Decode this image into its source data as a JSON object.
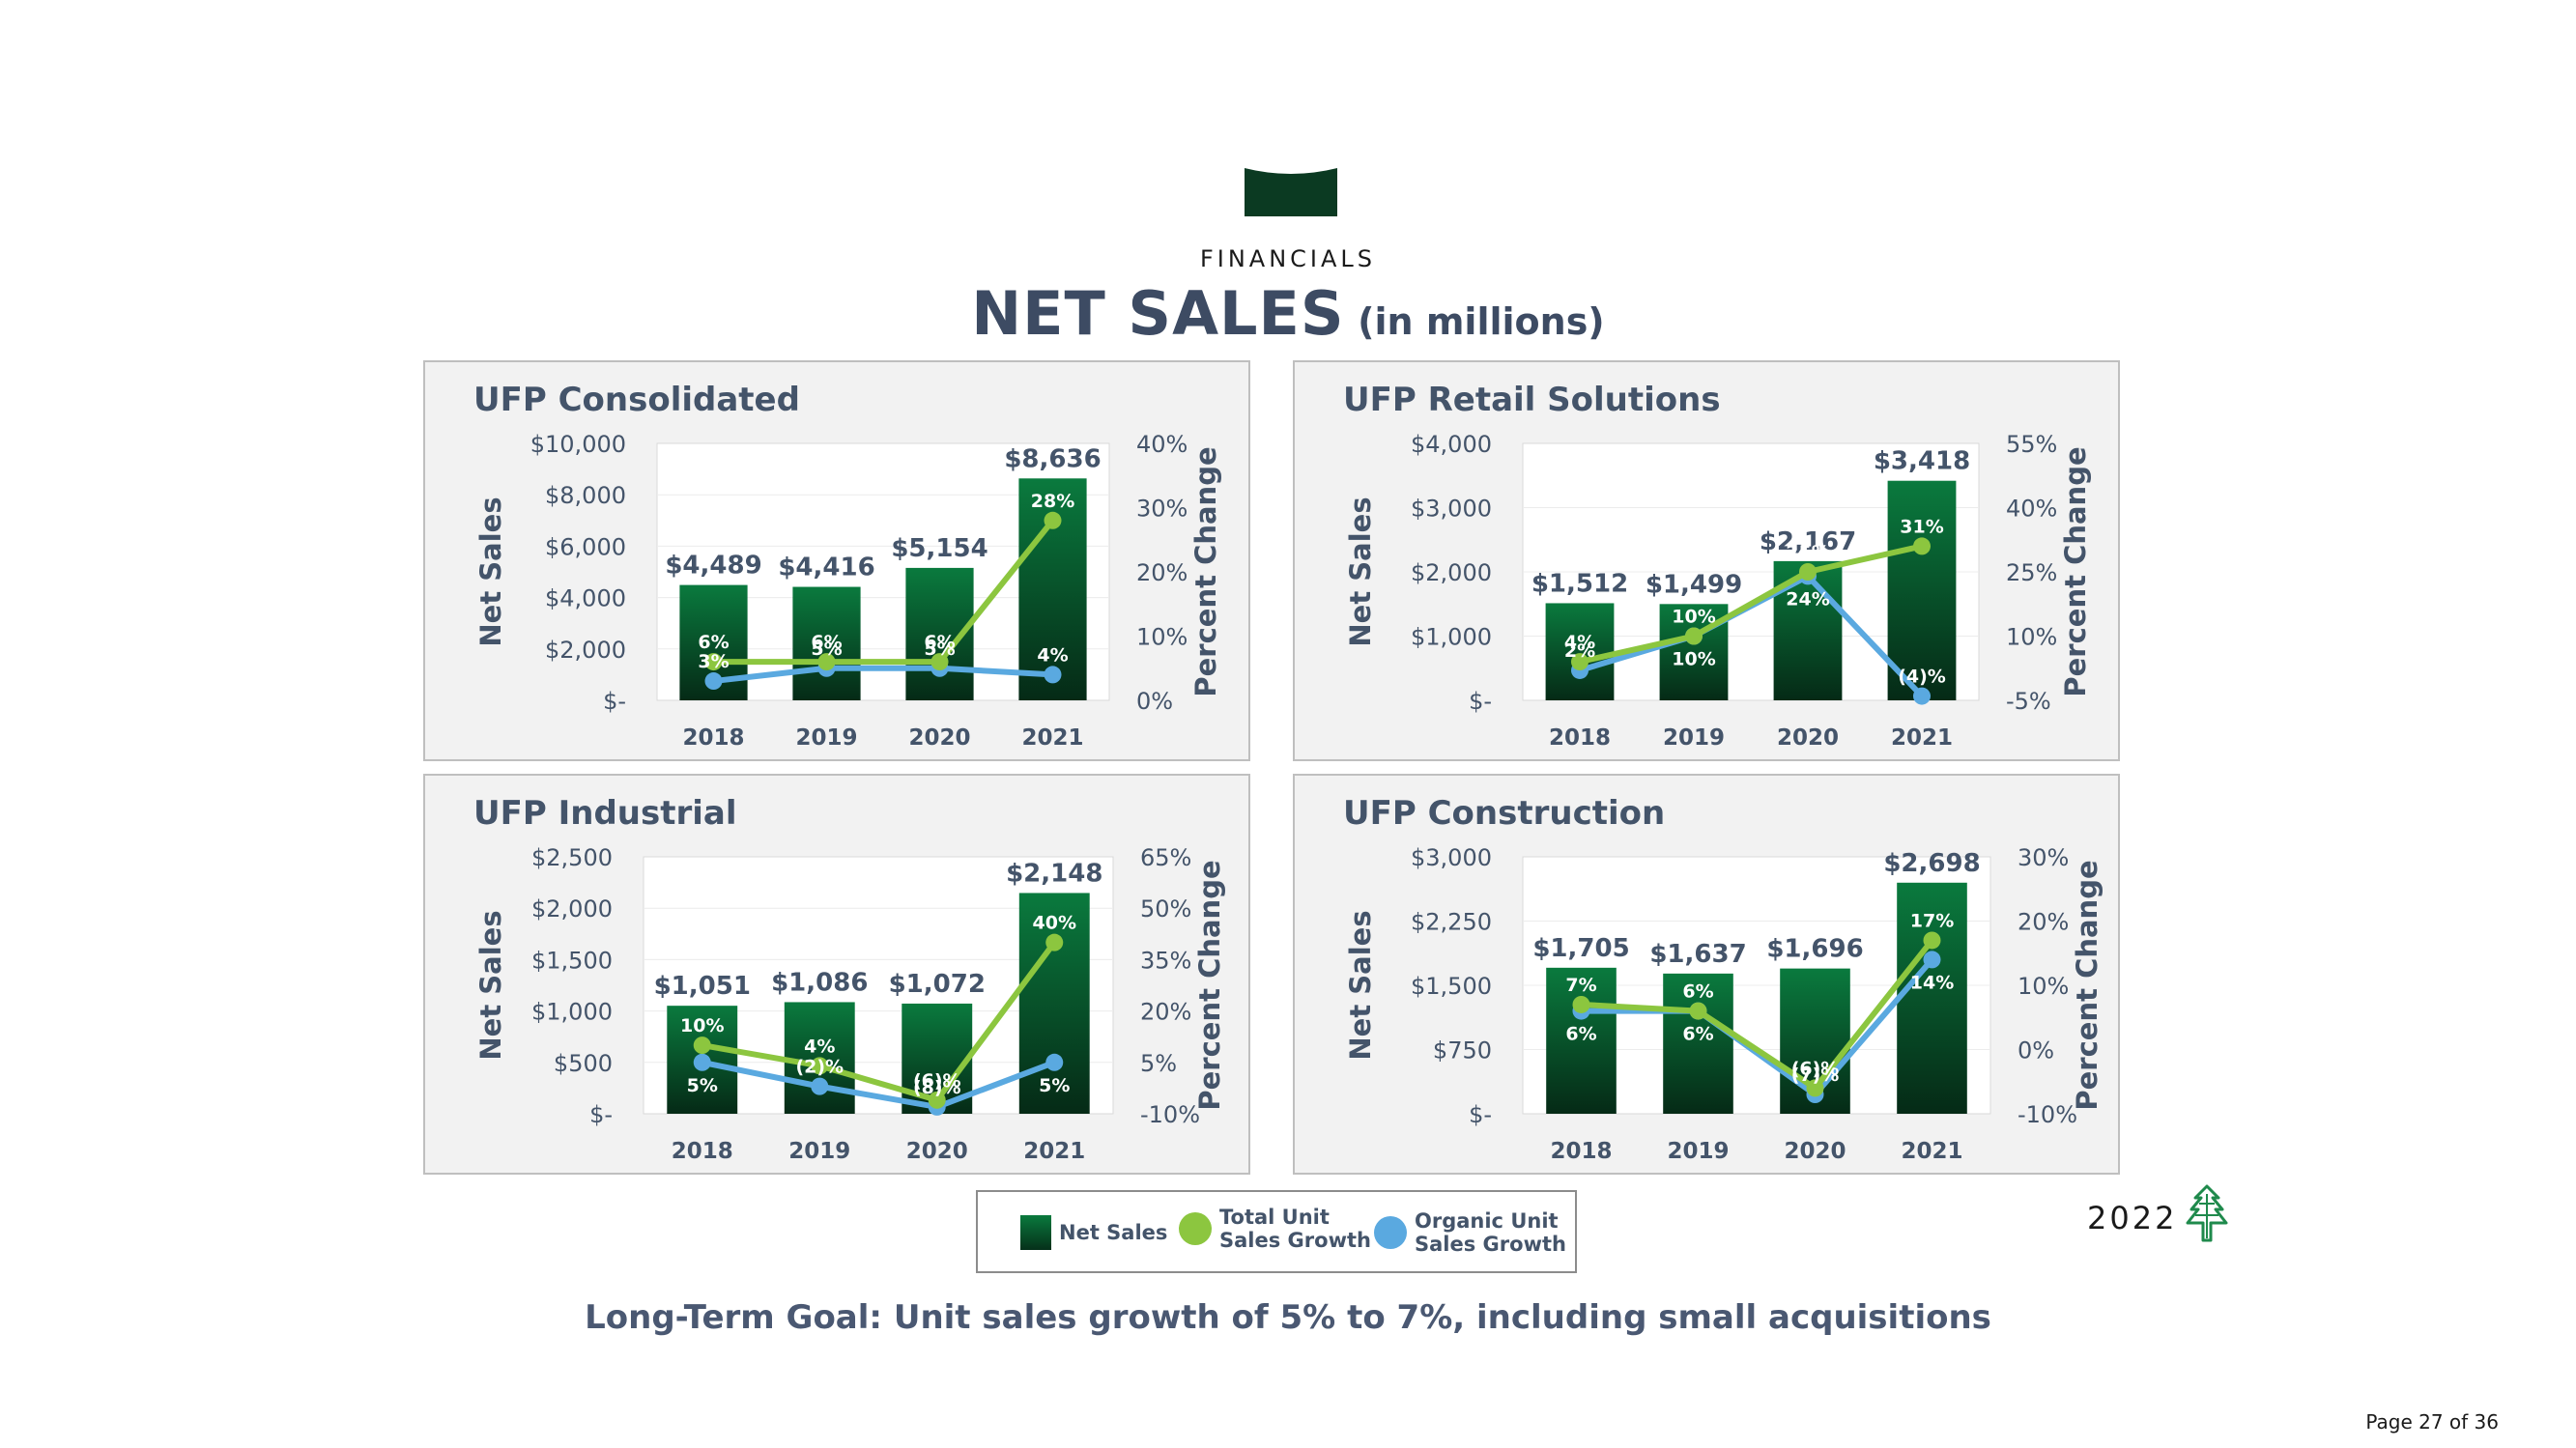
{
  "header": {
    "section_label": "FINANCIALS",
    "title": "NET SALES",
    "subtitle": "(in millions)"
  },
  "chart_data": [
    {
      "type": "bar",
      "title": "UFP Consolidated",
      "ylabel": "Net Sales",
      "y2label": "Percent Change",
      "categories": [
        "2018",
        "2019",
        "2020",
        "2021"
      ],
      "ylim": [
        0,
        10000
      ],
      "y_ticks": [
        "$10,000",
        "$8,000",
        "$6,000",
        "$4,000",
        "$2,000",
        "$-"
      ],
      "y2lim": [
        0,
        40
      ],
      "y2_ticks": [
        "40%",
        "30%",
        "20%",
        "10%",
        "0%"
      ],
      "series": [
        {
          "name": "Net Sales",
          "values": [
            4489,
            4416,
            5154,
            8636
          ],
          "labels": [
            "$4,489",
            "$4,416",
            "$5,154",
            "$8,636"
          ]
        },
        {
          "name": "Total Unit Sales Growth",
          "values": [
            6,
            6,
            6,
            28
          ],
          "labels": [
            "6%",
            "6%",
            "6%",
            "28%"
          ]
        },
        {
          "name": "Organic Unit Sales Growth",
          "values": [
            3,
            5,
            5,
            4
          ],
          "labels": [
            "3%",
            "5%",
            "5%",
            "4%"
          ]
        }
      ]
    },
    {
      "type": "bar",
      "title": "UFP Retail Solutions",
      "ylabel": "Net Sales",
      "y2label": "Percent Change",
      "categories": [
        "2018",
        "2019",
        "2020",
        "2021"
      ],
      "ylim": [
        0,
        4000
      ],
      "y_ticks": [
        "$4,000",
        "$3,000",
        "$2,000",
        "$1,000",
        "$-"
      ],
      "y2lim": [
        -5,
        55
      ],
      "y2_ticks": [
        "55%",
        "40%",
        "25%",
        "10%",
        "-5%"
      ],
      "series": [
        {
          "name": "Net Sales",
          "values": [
            1512,
            1499,
            2167,
            3418
          ],
          "labels": [
            "$1,512",
            "$1,499",
            "$2,167",
            "$3,418"
          ]
        },
        {
          "name": "Total Unit Sales Growth",
          "values": [
            4,
            10,
            25,
            31
          ],
          "labels": [
            "4%",
            "10%",
            "25%",
            "31%"
          ]
        },
        {
          "name": "Organic Unit Sales Growth",
          "values": [
            2,
            10,
            24,
            -4
          ],
          "labels": [
            "2%",
            "10%",
            "24%",
            "(4)%"
          ]
        }
      ]
    },
    {
      "type": "bar",
      "title": "UFP Industrial",
      "ylabel": "Net Sales",
      "y2label": "Percent Change",
      "categories": [
        "2018",
        "2019",
        "2020",
        "2021"
      ],
      "ylim": [
        0,
        2500
      ],
      "y_ticks": [
        "$2,500",
        "$2,000",
        "$1,500",
        "$1,000",
        "$500",
        "$-"
      ],
      "y2lim": [
        -10,
        65
      ],
      "y2_ticks": [
        "65%",
        "50%",
        "35%",
        "20%",
        "5%",
        "-10%"
      ],
      "series": [
        {
          "name": "Net Sales",
          "values": [
            1051,
            1086,
            1072,
            2148
          ],
          "labels": [
            "$1,051",
            "$1,086",
            "$1,072",
            "$2,148"
          ]
        },
        {
          "name": "Total Unit Sales Growth",
          "values": [
            10,
            4,
            -6,
            40
          ],
          "labels": [
            "10%",
            "4%",
            "(6)%",
            "40%"
          ]
        },
        {
          "name": "Organic Unit Sales Growth",
          "values": [
            5,
            -2,
            -8,
            5
          ],
          "labels": [
            "5%",
            "(2)%",
            "(8)%",
            "5%"
          ]
        }
      ]
    },
    {
      "type": "bar",
      "title": "UFP Construction",
      "ylabel": "Net Sales",
      "y2label": "Percent Change",
      "categories": [
        "2018",
        "2019",
        "2020",
        "2021"
      ],
      "ylim": [
        0,
        3000
      ],
      "y_ticks": [
        "$3,000",
        "$2,250",
        "$1,500",
        "$750",
        "$-"
      ],
      "y2lim": [
        -10,
        30
      ],
      "y2_ticks": [
        "30%",
        "20%",
        "10%",
        "0%",
        "-10%"
      ],
      "series": [
        {
          "name": "Net Sales",
          "values": [
            1705,
            1637,
            1696,
            2698
          ],
          "labels": [
            "$1,705",
            "$1,637",
            "$1,696",
            "$2,698"
          ]
        },
        {
          "name": "Total Unit Sales Growth",
          "values": [
            7,
            6,
            -6,
            17
          ],
          "labels": [
            "7%",
            "6%",
            "(6)%",
            "17%"
          ]
        },
        {
          "name": "Organic Unit Sales Growth",
          "values": [
            6,
            6,
            -7,
            14
          ],
          "labels": [
            "6%",
            "6%",
            "(7)%",
            "14%"
          ]
        }
      ]
    }
  ],
  "legend": [
    {
      "label": "Net Sales",
      "kind": "bar",
      "color": "#0a6b36"
    },
    {
      "label": "Total Unit\nSales Growth",
      "kind": "dot",
      "color": "#8cc63f"
    },
    {
      "label": "Organic Unit\nSales Growth",
      "kind": "dot",
      "color": "#5aa9e0"
    }
  ],
  "colors": {
    "bar_top": "#0a7a3e",
    "bar_bottom": "#052a16",
    "total_line": "#8cc63f",
    "organic_line": "#5aa9e0",
    "text": "#44546a",
    "header_banner": "#0b3a22"
  },
  "goal_text": "Long-Term Goal: Unit sales growth of 5% to 7%, including small acquisitions",
  "footer": {
    "year": "2022",
    "logo_icon": "tree-icon",
    "page": "Page 27 of 36"
  }
}
